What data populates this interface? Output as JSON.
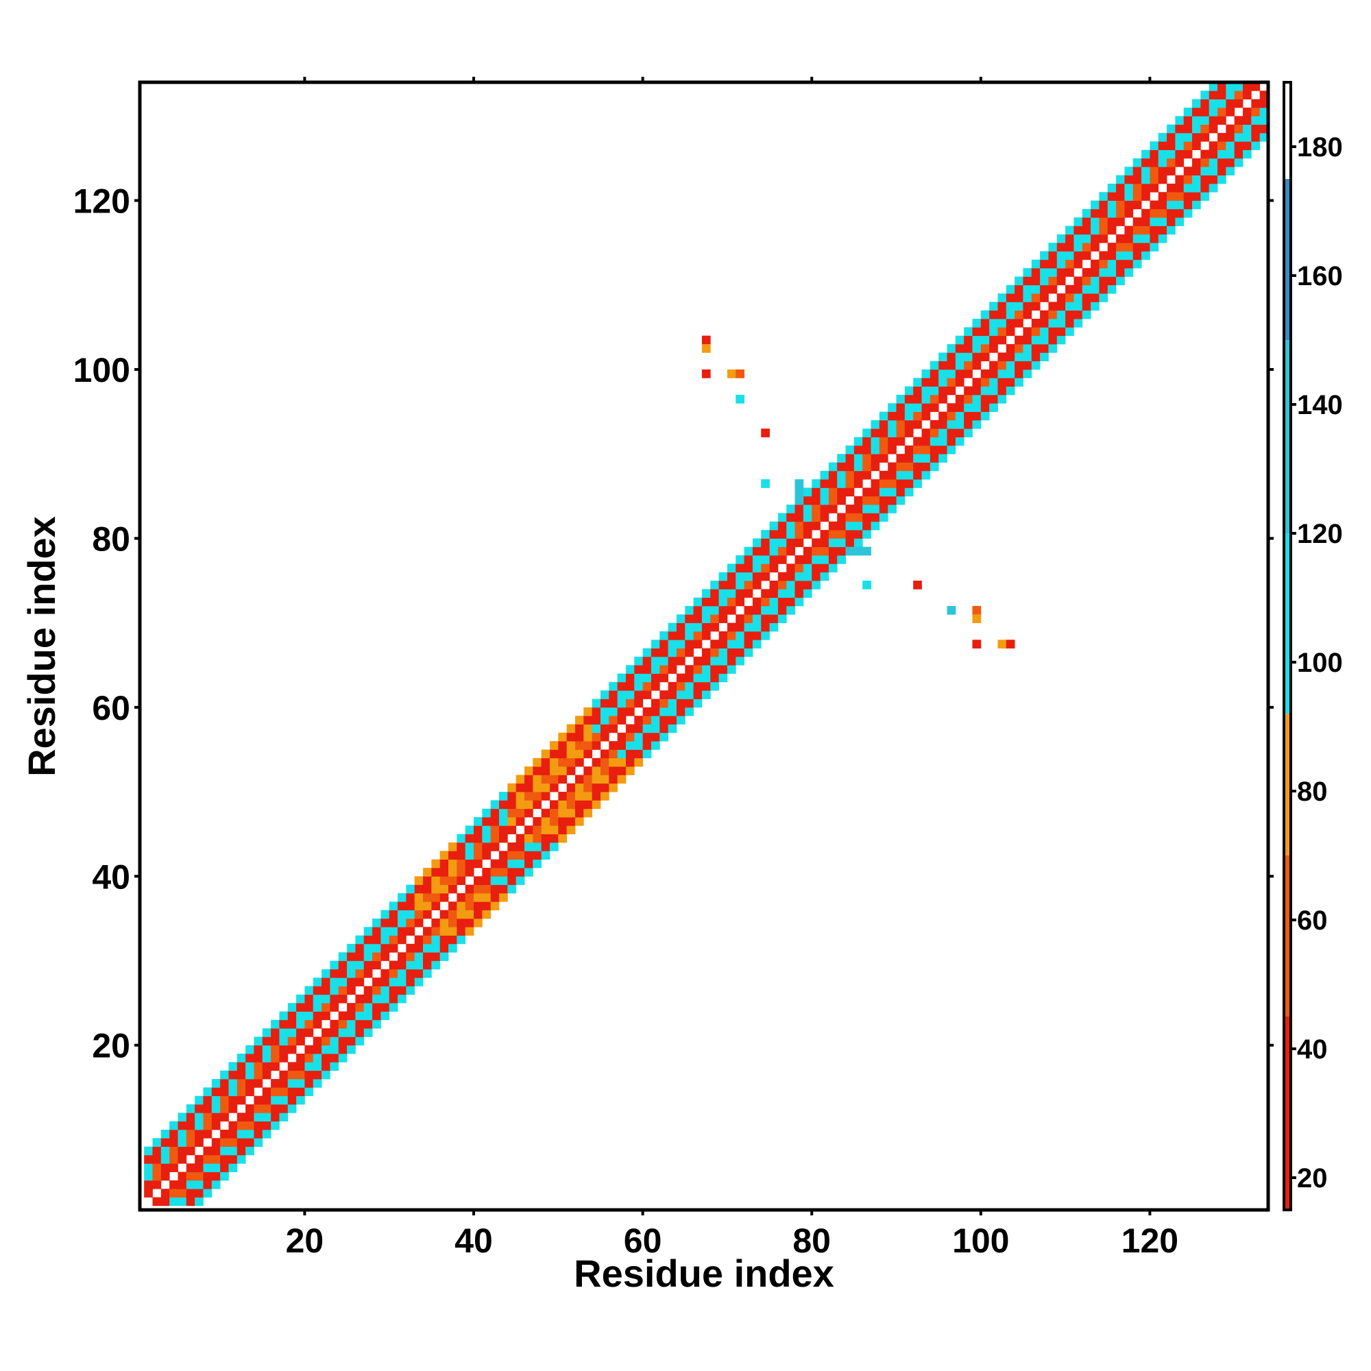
{
  "chart_data": {
    "type": "heatmap",
    "xlabel": "Residue index",
    "ylabel": "Residue index",
    "xlim": [
      1,
      133
    ],
    "ylim": [
      1,
      133
    ],
    "x_ticks": [
      "20",
      "40",
      "60",
      "80",
      "100",
      "120"
    ],
    "y_ticks": [
      "20",
      "40",
      "60",
      "80",
      "100",
      "120"
    ],
    "colorbar": {
      "range": [
        15,
        190
      ],
      "ticks": [
        "20",
        "40",
        "60",
        "80",
        "100",
        "120",
        "140",
        "160",
        "180"
      ],
      "bands": [
        {
          "from": 15,
          "to": 45,
          "color": "#e81e0e"
        },
        {
          "from": 45,
          "to": 70,
          "color": "#f05a10"
        },
        {
          "from": 70,
          "to": 92,
          "color": "#f39c12"
        },
        {
          "from": 92,
          "to": 120,
          "color": "#18e0e8"
        },
        {
          "from": 120,
          "to": 150,
          "color": "#2ec4d8"
        },
        {
          "from": 150,
          "to": 175,
          "color": "#3a8ac4"
        },
        {
          "from": 175,
          "to": 190,
          "color": "#ffffff"
        }
      ]
    },
    "band_width": 6,
    "diagonal_segments": [
      {
        "from": 1,
        "to": 10,
        "pattern": "mixed"
      },
      {
        "from": 10,
        "to": 17,
        "pattern": "mixed"
      },
      {
        "from": 17,
        "to": 33,
        "pattern": "helix"
      },
      {
        "from": 33,
        "to": 38,
        "pattern": "orange"
      },
      {
        "from": 38,
        "to": 44,
        "pattern": "mixed"
      },
      {
        "from": 44,
        "to": 54,
        "pattern": "orange"
      },
      {
        "from": 54,
        "to": 78,
        "pattern": "helix"
      },
      {
        "from": 78,
        "to": 92,
        "pattern": "mixed"
      },
      {
        "from": 92,
        "to": 113,
        "pattern": "helix"
      },
      {
        "from": 113,
        "to": 122,
        "pattern": "mixed"
      },
      {
        "from": 122,
        "to": 133,
        "pattern": "helix"
      }
    ],
    "off_diagonal_cells": [
      {
        "x": 67,
        "y": 103,
        "value": 40
      },
      {
        "x": 67,
        "y": 102,
        "value": 70
      },
      {
        "x": 67,
        "y": 99,
        "value": 40
      },
      {
        "x": 70,
        "y": 99,
        "value": 70
      },
      {
        "x": 71,
        "y": 99,
        "value": 60
      },
      {
        "x": 71,
        "y": 96,
        "value": 110
      },
      {
        "x": 74,
        "y": 92,
        "value": 40
      },
      {
        "x": 74,
        "y": 86,
        "value": 105
      },
      {
        "x": 86,
        "y": 74,
        "value": 105
      },
      {
        "x": 92,
        "y": 74,
        "value": 40
      },
      {
        "x": 96,
        "y": 71,
        "value": 130
      },
      {
        "x": 99,
        "y": 71,
        "value": 60
      },
      {
        "x": 99,
        "y": 70,
        "value": 70
      },
      {
        "x": 99,
        "y": 67,
        "value": 40
      },
      {
        "x": 102,
        "y": 67,
        "value": 70
      },
      {
        "x": 103,
        "y": 67,
        "value": 40
      },
      {
        "x": 78,
        "y": 86,
        "value": 130
      },
      {
        "x": 78,
        "y": 85,
        "value": 130
      },
      {
        "x": 78,
        "y": 84,
        "value": 130
      },
      {
        "x": 84,
        "y": 78,
        "value": 130
      },
      {
        "x": 85,
        "y": 78,
        "value": 130
      },
      {
        "x": 86,
        "y": 78,
        "value": 130
      }
    ]
  }
}
